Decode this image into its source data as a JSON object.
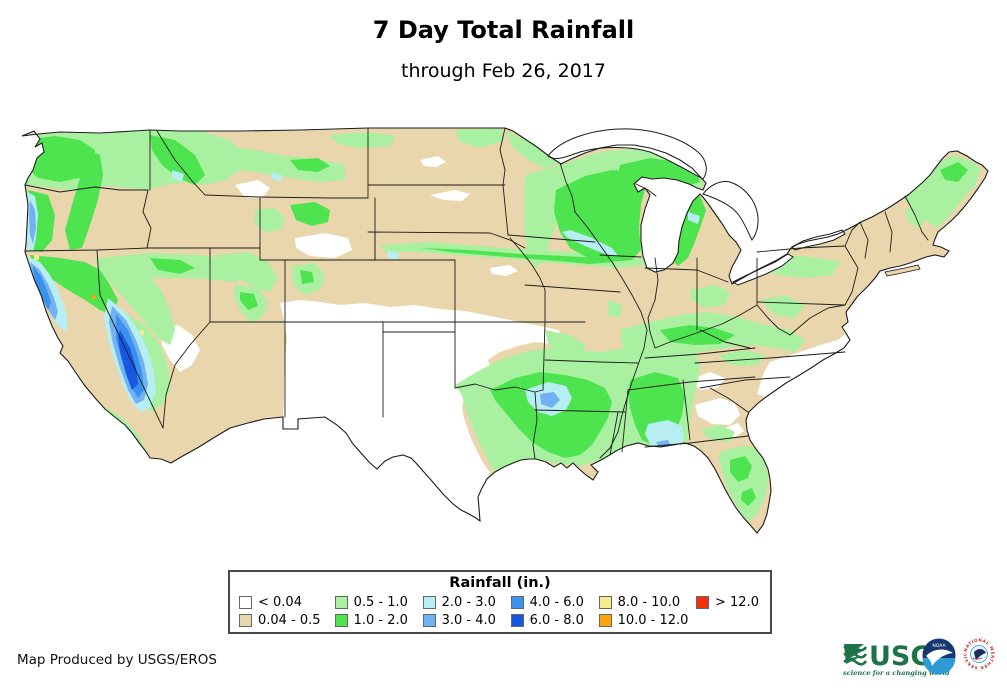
{
  "header": {
    "title": "7 Day Total Rainfall",
    "subtitle": "through Feb 26, 2017"
  },
  "map": {
    "region": "Contiguous United States",
    "kind": "rainfall-choropleth"
  },
  "legend": {
    "title": "Rainfall (in.)",
    "items": [
      {
        "label": "< 0.04",
        "color": "#ffffff"
      },
      {
        "label": "0.04 - 0.5",
        "color": "#e9d6ac"
      },
      {
        "label": "0.5 - 1.0",
        "color": "#a9f1a0"
      },
      {
        "label": "1.0 - 2.0",
        "color": "#4ee44f"
      },
      {
        "label": "2.0 - 3.0",
        "color": "#b6eef2"
      },
      {
        "label": "3.0 - 4.0",
        "color": "#72b2f2"
      },
      {
        "label": "4.0 - 6.0",
        "color": "#3a92ee"
      },
      {
        "label": "6.0 - 8.0",
        "color": "#1758e0"
      },
      {
        "label": "8.0 - 10.0",
        "color": "#f6ec8f"
      },
      {
        "label": "10.0 - 12.0",
        "color": "#ffa30a"
      },
      {
        "label": "> 12.0",
        "color": "#f23010"
      }
    ]
  },
  "footer": {
    "credit": "Map Produced by USGS/EROS"
  },
  "logos": {
    "usgs": {
      "name": "USGS",
      "tagline": "science for a changing world",
      "color": "#1d7446"
    },
    "noaa": {
      "abbr": "NOAA",
      "navy": "#16386f",
      "light": "#2e9ad6"
    },
    "nws": {
      "ring_text": "NATIONAL WEATHER SERVICE",
      "color": "#cc2222"
    }
  }
}
